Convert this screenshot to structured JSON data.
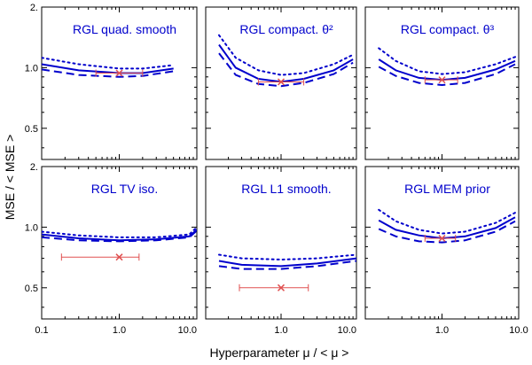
{
  "figure": {
    "ylabel": "MSE / < MSE >",
    "xlabel": "Hyperparameter μ / < μ >"
  },
  "axes": {
    "x_ticks_left": [
      "0.1",
      "1.0",
      "10.0"
    ],
    "x_ticks_mid": [
      "1.0",
      "10.0"
    ],
    "x_ticks_right": [
      "1.0",
      "10.0"
    ],
    "y_ticks_top": [
      "2.",
      "1.0",
      "0.5"
    ],
    "y_ticks_bottom": [
      "2.",
      "1.0",
      "0.5"
    ]
  },
  "colors": {
    "curve": "#0000cc",
    "marker": "#e05050",
    "frame": "#000000"
  },
  "chart_data": [
    {
      "type": "line",
      "title": "RGL quad. smooth",
      "xscale": "log",
      "yscale": "log",
      "xlim": [
        0.1,
        10
      ],
      "ylim": [
        0.35,
        2
      ],
      "series": [
        {
          "style": "dotted",
          "x": [
            0.1,
            0.3,
            1.0,
            2.0,
            5.0
          ],
          "y": [
            1.12,
            1.04,
            0.99,
            0.99,
            1.03
          ]
        },
        {
          "style": "solid",
          "x": [
            0.1,
            0.3,
            1.0,
            2.0,
            5.0
          ],
          "y": [
            1.04,
            0.97,
            0.94,
            0.94,
            0.99
          ]
        },
        {
          "style": "dashed",
          "x": [
            0.1,
            0.3,
            1.0,
            2.0,
            5.0
          ],
          "y": [
            0.98,
            0.92,
            0.9,
            0.91,
            0.96
          ]
        }
      ],
      "marker": {
        "x": 1.0,
        "y": 0.94,
        "xerr": [
          0.5,
          2.0
        ]
      }
    },
    {
      "type": "line",
      "title": "RGL compact. θ²",
      "xscale": "log",
      "yscale": "log",
      "xlim": [
        0.1,
        10
      ],
      "ylim": [
        0.35,
        2
      ],
      "series": [
        {
          "style": "dotted",
          "x": [
            0.15,
            0.25,
            0.5,
            1.0,
            2.0,
            5.0,
            9.0
          ],
          "y": [
            1.45,
            1.12,
            0.97,
            0.92,
            0.94,
            1.04,
            1.16
          ]
        },
        {
          "style": "solid",
          "x": [
            0.15,
            0.25,
            0.5,
            1.0,
            2.0,
            5.0,
            9.0
          ],
          "y": [
            1.3,
            1.0,
            0.88,
            0.85,
            0.88,
            0.97,
            1.1
          ]
        },
        {
          "style": "dashed",
          "x": [
            0.15,
            0.25,
            0.5,
            1.0,
            2.0,
            5.0,
            9.0
          ],
          "y": [
            1.18,
            0.92,
            0.83,
            0.81,
            0.84,
            0.93,
            1.06
          ]
        }
      ],
      "marker": {
        "x": 1.0,
        "y": 0.85,
        "xerr": [
          0.5,
          2.0
        ]
      }
    },
    {
      "type": "line",
      "title": "RGL compact. θ³",
      "xscale": "log",
      "yscale": "log",
      "xlim": [
        0.1,
        10
      ],
      "ylim": [
        0.35,
        2
      ],
      "series": [
        {
          "style": "dotted",
          "x": [
            0.15,
            0.25,
            0.5,
            1.0,
            2.0,
            5.0,
            9.0
          ],
          "y": [
            1.25,
            1.08,
            0.96,
            0.93,
            0.95,
            1.04,
            1.13
          ]
        },
        {
          "style": "solid",
          "x": [
            0.15,
            0.25,
            0.5,
            1.0,
            2.0,
            5.0,
            9.0
          ],
          "y": [
            1.1,
            0.97,
            0.89,
            0.87,
            0.89,
            0.98,
            1.08
          ]
        },
        {
          "style": "dashed",
          "x": [
            0.15,
            0.25,
            0.5,
            1.0,
            2.0,
            5.0,
            9.0
          ],
          "y": [
            1.01,
            0.91,
            0.84,
            0.82,
            0.84,
            0.93,
            1.04
          ]
        }
      ],
      "marker": {
        "x": 1.0,
        "y": 0.87,
        "xerr": [
          0.6,
          1.6
        ]
      }
    },
    {
      "type": "line",
      "title": "RGL TV iso.",
      "xscale": "log",
      "yscale": "log",
      "xlim": [
        0.1,
        10
      ],
      "ylim": [
        0.35,
        2
      ],
      "series": [
        {
          "style": "dotted",
          "x": [
            0.1,
            0.3,
            1.0,
            3.0,
            8.0,
            10.0
          ],
          "y": [
            0.95,
            0.91,
            0.89,
            0.89,
            0.92,
            1.0
          ]
        },
        {
          "style": "solid",
          "x": [
            0.1,
            0.3,
            1.0,
            3.0,
            8.0,
            10.0
          ],
          "y": [
            0.92,
            0.88,
            0.86,
            0.87,
            0.9,
            0.97
          ]
        },
        {
          "style": "dashed",
          "x": [
            0.1,
            0.3,
            1.0,
            3.0,
            8.0,
            10.0
          ],
          "y": [
            0.89,
            0.86,
            0.85,
            0.86,
            0.89,
            0.96
          ]
        }
      ],
      "marker": {
        "x": 1.0,
        "y": 0.71,
        "xerr": [
          0.18,
          1.8
        ]
      }
    },
    {
      "type": "line",
      "title": "RGL L1 smooth.",
      "xscale": "log",
      "yscale": "log",
      "xlim": [
        0.1,
        10
      ],
      "ylim": [
        0.35,
        2
      ],
      "series": [
        {
          "style": "dotted",
          "x": [
            0.15,
            0.3,
            1.0,
            3.0,
            10.0
          ],
          "y": [
            0.73,
            0.7,
            0.69,
            0.7,
            0.73
          ]
        },
        {
          "style": "solid",
          "x": [
            0.15,
            0.3,
            1.0,
            3.0,
            10.0
          ],
          "y": [
            0.68,
            0.65,
            0.64,
            0.66,
            0.7
          ]
        },
        {
          "style": "dashed",
          "x": [
            0.15,
            0.3,
            1.0,
            3.0,
            10.0
          ],
          "y": [
            0.64,
            0.62,
            0.62,
            0.64,
            0.68
          ]
        }
      ],
      "marker": {
        "x": 1.0,
        "y": 0.5,
        "xerr": [
          0.28,
          2.3
        ]
      }
    },
    {
      "type": "line",
      "title": "RGL MEM prior",
      "xscale": "log",
      "yscale": "log",
      "xlim": [
        0.1,
        10
      ],
      "ylim": [
        0.35,
        2
      ],
      "series": [
        {
          "style": "dotted",
          "x": [
            0.15,
            0.25,
            0.5,
            1.0,
            2.0,
            5.0,
            9.0
          ],
          "y": [
            1.22,
            1.07,
            0.97,
            0.93,
            0.95,
            1.05,
            1.18
          ]
        },
        {
          "style": "solid",
          "x": [
            0.15,
            0.25,
            0.5,
            1.0,
            2.0,
            5.0,
            9.0
          ],
          "y": [
            1.08,
            0.97,
            0.91,
            0.88,
            0.9,
            0.99,
            1.12
          ]
        },
        {
          "style": "dashed",
          "x": [
            0.15,
            0.25,
            0.5,
            1.0,
            2.0,
            5.0,
            9.0
          ],
          "y": [
            0.98,
            0.9,
            0.85,
            0.84,
            0.86,
            0.95,
            1.07
          ]
        }
      ],
      "marker": {
        "x": 1.0,
        "y": 0.88,
        "xerr": [
          0.6,
          1.5
        ]
      }
    }
  ]
}
